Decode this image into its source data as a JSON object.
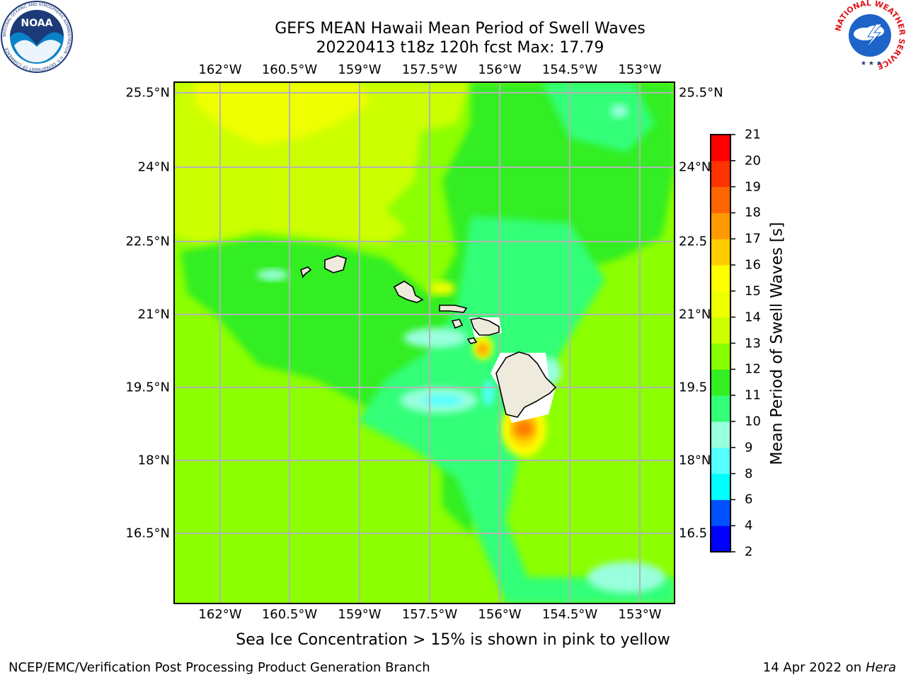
{
  "header": {
    "title_line1": "GEFS MEAN Hawaii Mean Period of Swell Waves",
    "title_line2": "20220413 t18z 120h fcst   Max: 17.79"
  },
  "map": {
    "lon_ticks": [
      "162°W",
      "160.5°W",
      "159°W",
      "157.5°W",
      "156°W",
      "154.5°W",
      "153°W"
    ],
    "lat_ticks_left": [
      "25.5°N",
      "24°N",
      "22.5°N",
      "21°N",
      "19.5°N",
      "18°N",
      "16.5°N"
    ],
    "lat_ticks_right": [
      "25.5°N",
      "24°N",
      "22.5",
      "21°N",
      "19.5",
      "18°N",
      "16.5"
    ],
    "islands": [
      "Niihau",
      "Kauai",
      "Oahu",
      "Molokai",
      "Lanai",
      "Maui",
      "Kahoolawe",
      "Hawaii"
    ],
    "land_color": "#eeebdc",
    "ocean_base_color": "#8cff00"
  },
  "colorbar": {
    "label": "Mean Period of Swell Waves [s]",
    "ticks": [
      "2",
      "4",
      "6",
      "8",
      "9",
      "10",
      "11",
      "12",
      "13",
      "14",
      "15",
      "16",
      "17",
      "18",
      "19",
      "20",
      "21"
    ],
    "colors": [
      "#0000ff",
      "#0050ff",
      "#00ffff",
      "#55ffff",
      "#99ffdd",
      "#33ff77",
      "#33ee22",
      "#88ff00",
      "#ccff00",
      "#eeff00",
      "#ffff00",
      "#ffcc00",
      "#ff9900",
      "#ff6600",
      "#ff3300",
      "#ff0000"
    ]
  },
  "caption": "Sea Ice Concentration > 15% is shown in pink to yellow",
  "footer": {
    "left": "NCEP/EMC/Verification Post Processing Product Generation Branch",
    "right_date": "14 Apr 2022 on ",
    "right_host": "Hera"
  },
  "logos": {
    "noaa_text": "NOAA",
    "noaa_ring_text": "NATIONAL OCEANIC AND ATMOSPHERIC ADMINISTRATION · U.S. DEPARTMENT OF COMMERCE",
    "nws_ring_text": "NATIONAL WEATHER SERVICE"
  }
}
